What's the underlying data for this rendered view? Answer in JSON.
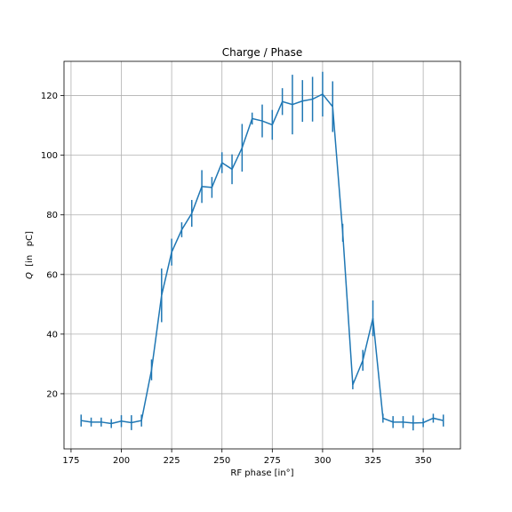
{
  "chart_data": {
    "type": "line",
    "title": "Charge / Phase",
    "xlabel": "RF phase [in°]",
    "ylabel_prefix": "Q",
    "ylabel_suffix": "  [in   pC]",
    "xlim": [
      171.5,
      368.5
    ],
    "ylim": [
      1.5,
      131.5
    ],
    "xticks": [
      175,
      200,
      225,
      250,
      275,
      300,
      325,
      350
    ],
    "yticks": [
      20,
      40,
      60,
      80,
      100,
      120
    ],
    "grid": true,
    "legend": "none",
    "color": "#1f77b4",
    "series": [
      {
        "x": [
          180,
          185,
          190,
          195,
          200,
          205,
          210,
          215,
          220,
          225,
          230,
          235,
          240,
          245,
          250,
          255,
          260,
          265,
          270,
          275,
          280,
          285,
          290,
          295,
          300,
          305,
          310,
          315,
          320,
          325,
          330,
          335,
          340,
          345,
          350,
          355,
          360
        ],
        "y": [
          11,
          10.5,
          10.5,
          10,
          10.8,
          10.3,
          11,
          28,
          53,
          67.5,
          75,
          80.5,
          89.5,
          89.2,
          97.5,
          95.3,
          102.5,
          112.3,
          111.5,
          110.2,
          118,
          117,
          118.2,
          118.8,
          120.5,
          116.3,
          74,
          23,
          31.2,
          45.3,
          11.8,
          10.5,
          10.5,
          10.2,
          10.3,
          11.8,
          11
        ],
        "yerr": [
          2,
          1.5,
          1.5,
          1.5,
          2,
          2.5,
          2,
          3.5,
          9,
          4.5,
          2.5,
          4.5,
          5.5,
          3.5,
          3.5,
          5,
          8,
          2,
          5.5,
          5,
          4.5,
          10,
          7,
          7.5,
          7.5,
          8.5,
          3,
          1.5,
          3.5,
          6,
          1.5,
          2,
          2,
          2.5,
          1.5,
          1.5,
          2
        ]
      }
    ]
  }
}
